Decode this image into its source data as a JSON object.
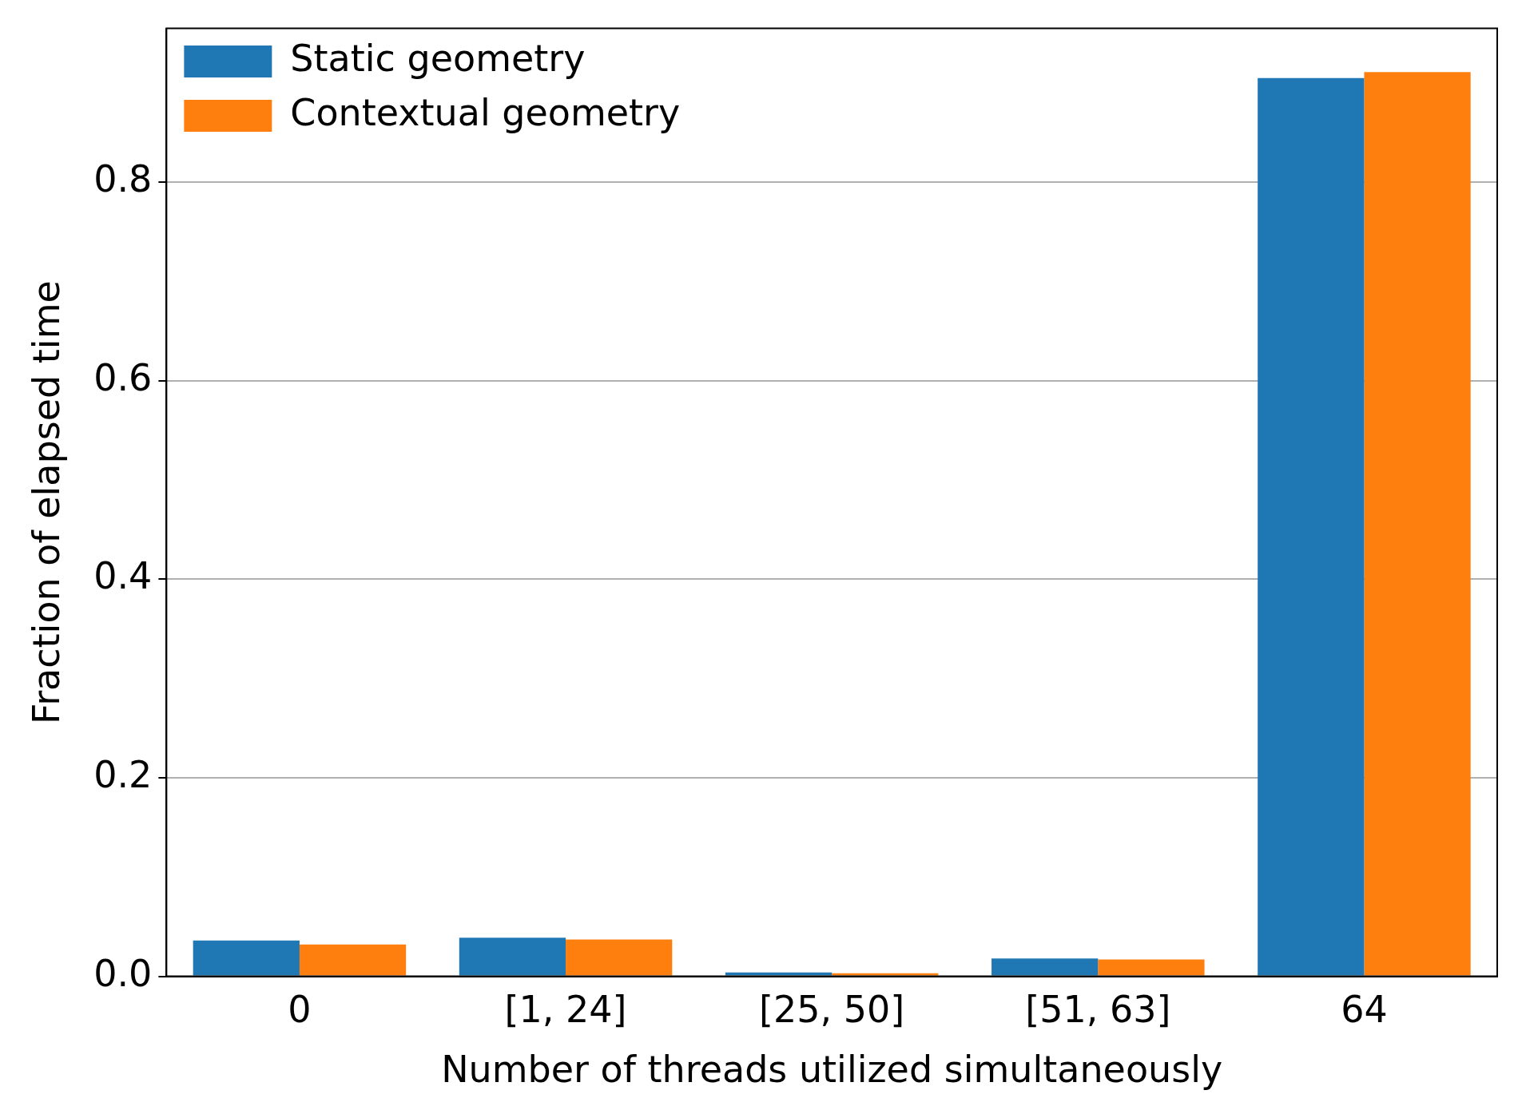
{
  "chart_data": {
    "type": "bar",
    "xlabel": "Number of threads utilized simultaneously",
    "ylabel": "Fraction of elapsed time",
    "categories": [
      "0",
      "[1, 24]",
      "[25, 50]",
      "[51, 63]",
      "64"
    ],
    "series": [
      {
        "name": "Static geometry",
        "color": "#1f77b4",
        "values": [
          0.036,
          0.039,
          0.004,
          0.018,
          0.905
        ]
      },
      {
        "name": "Contextual geometry",
        "color": "#ff7f0e",
        "values": [
          0.032,
          0.037,
          0.003,
          0.017,
          0.911
        ]
      }
    ],
    "ylim": [
      0,
      0.955
    ],
    "yticks": [
      {
        "value": 0,
        "label": "0.0"
      },
      {
        "value": 0.2,
        "label": "0.2"
      },
      {
        "value": 0.4,
        "label": "0.4"
      },
      {
        "value": 0.6,
        "label": "0.6"
      },
      {
        "value": 0.8,
        "label": "0.8"
      }
    ],
    "grid": "y",
    "legend": "top left"
  }
}
